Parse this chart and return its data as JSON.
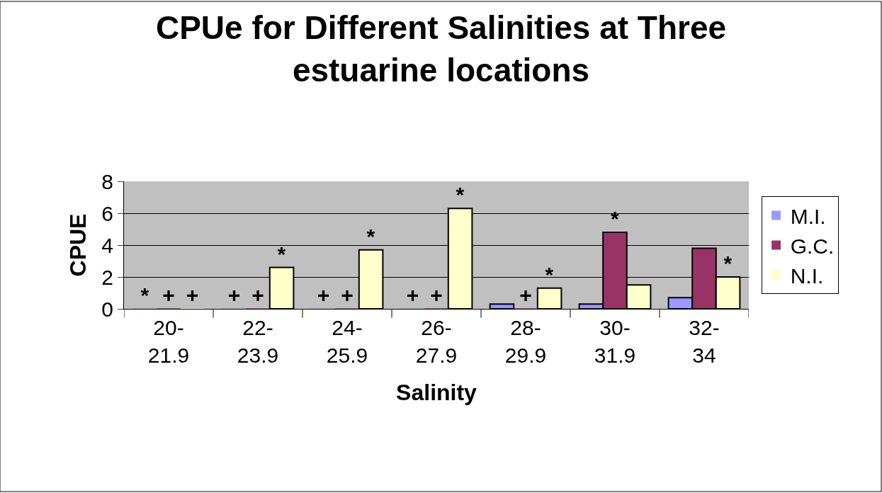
{
  "chart_data": {
    "type": "bar",
    "title": "CPUe for Different Salinities at Three estuarine locations",
    "xlabel": "Salinity",
    "ylabel": "CPUE",
    "categories": [
      "20-21.9",
      "22-23.9",
      "24-25.9",
      "26-27.9",
      "28-29.9",
      "30-31.9",
      "32-34"
    ],
    "series": [
      {
        "name": "M.I.",
        "color": "#9999ff",
        "values": [
          0,
          0,
          0,
          0,
          0.3,
          0.3,
          0.7
        ],
        "value_labels": [
          "*",
          "+",
          "+",
          "+",
          null,
          null,
          null
        ]
      },
      {
        "name": "G.C.",
        "color": "#993366",
        "values": [
          0,
          0,
          0,
          0,
          0,
          4.8,
          3.8
        ],
        "value_labels": [
          "+",
          "+",
          "+",
          "+",
          "+",
          "*",
          null
        ]
      },
      {
        "name": "N.I.",
        "color": "#ffffcc",
        "values": [
          0,
          2.6,
          3.7,
          6.3,
          1.3,
          1.5,
          2.0
        ],
        "value_labels": [
          "+",
          "*",
          "*",
          "*",
          "*",
          null,
          "*"
        ]
      }
    ],
    "ylim": [
      0,
      8
    ],
    "yticks": [
      0,
      2,
      4,
      6,
      8
    ],
    "grid": "y",
    "legend": "right"
  }
}
